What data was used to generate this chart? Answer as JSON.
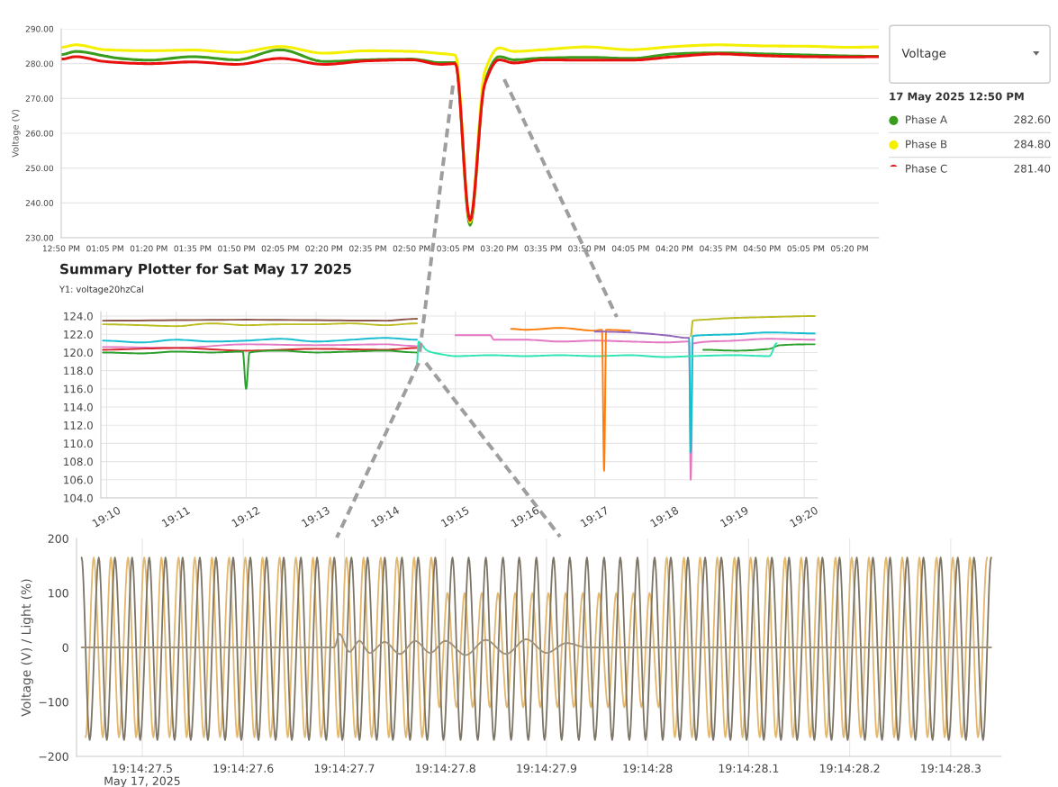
{
  "chart_data": [
    {
      "type": "line",
      "ylabel": "Voltage (V)",
      "xlim": [
        12.8333,
        17.5
      ],
      "ylim": [
        230,
        290
      ],
      "xticks": [
        {
          "value": 12.8333,
          "label": "12:50 PM"
        },
        {
          "value": 13.0833,
          "label": "01:05 PM"
        },
        {
          "value": 13.3333,
          "label": "01:20 PM"
        },
        {
          "value": 13.5833,
          "label": "01:35 PM"
        },
        {
          "value": 13.8333,
          "label": "01:50 PM"
        },
        {
          "value": 14.0833,
          "label": "02:05 PM"
        },
        {
          "value": 14.3333,
          "label": "02:20 PM"
        },
        {
          "value": 14.5833,
          "label": "02:35 PM"
        },
        {
          "value": 14.8333,
          "label": "02:50 PM"
        },
        {
          "value": 15.0833,
          "label": "03:05 PM"
        },
        {
          "value": 15.3333,
          "label": "03:20 PM"
        },
        {
          "value": 15.5833,
          "label": "03:35 PM"
        },
        {
          "value": 15.8333,
          "label": "03:50 PM"
        },
        {
          "value": 16.0833,
          "label": "04:05 PM"
        },
        {
          "value": 16.3333,
          "label": "04:20 PM"
        },
        {
          "value": 16.5833,
          "label": "04:35 PM"
        },
        {
          "value": 16.8333,
          "label": "04:50 PM"
        },
        {
          "value": 17.0833,
          "label": "05:05 PM"
        },
        {
          "value": 17.3333,
          "label": "05:20 PM"
        }
      ],
      "yticks": [
        {
          "value": 230,
          "label": "230.00"
        },
        {
          "value": 240,
          "label": "240.00"
        },
        {
          "value": 250,
          "label": "250.00"
        },
        {
          "value": 260,
          "label": "260.00"
        },
        {
          "value": 270,
          "label": "270.00"
        },
        {
          "value": 280,
          "label": "280.00"
        },
        {
          "value": 290,
          "label": "290.00"
        }
      ],
      "grid": "y",
      "legend": "right",
      "annotations": [
        "Voltage",
        "17 May 2025 12:50 PM",
        "282.60",
        "284.80",
        "281.40"
      ],
      "series": [
        {
          "name": "Phase A",
          "color": "#3a9c1c",
          "x": [
            12.8333,
            12.9167,
            13.0833,
            13.1667,
            13.3333,
            13.5833,
            13.8333,
            14.0833,
            14.3333,
            14.5833,
            14.8333,
            15.0,
            15.0833,
            15.1667,
            15.25,
            15.3333,
            15.4167,
            15.5833,
            15.8333,
            16.0833,
            16.3333,
            16.5833,
            16.8333,
            17.0833,
            17.3333,
            17.5
          ],
          "values": [
            282.6,
            283.5,
            282.2,
            281.5,
            281.0,
            282.0,
            281.1,
            284.0,
            280.6,
            281.1,
            281.3,
            280.3,
            280.3,
            233.6,
            274.6,
            282.0,
            281.1,
            281.6,
            281.8,
            281.5,
            282.8,
            283.1,
            282.8,
            282.5,
            282.2,
            282.1
          ]
        },
        {
          "name": "Phase B",
          "color": "#f5ef00",
          "x": [
            12.8333,
            12.9167,
            13.0833,
            13.3333,
            13.5833,
            13.8333,
            14.0833,
            14.3333,
            14.5833,
            14.8333,
            15.0,
            15.0833,
            15.1667,
            15.25,
            15.3333,
            15.4167,
            15.5833,
            15.8333,
            16.0833,
            16.3333,
            16.5833,
            16.8333,
            17.0833,
            17.3333,
            17.5
          ],
          "values": [
            284.7,
            285.4,
            284.0,
            283.7,
            283.9,
            283.2,
            284.9,
            283.0,
            283.7,
            283.5,
            282.9,
            282.4,
            234.5,
            277.5,
            284.5,
            283.5,
            284.0,
            284.8,
            284.0,
            284.9,
            285.4,
            285.1,
            285.0,
            284.7,
            284.8
          ]
        },
        {
          "name": "Phase C",
          "color": "#e8110f",
          "x": [
            12.8333,
            12.9167,
            13.0833,
            13.3333,
            13.5833,
            13.8333,
            14.0833,
            14.3333,
            14.5833,
            14.8333,
            15.0,
            15.0833,
            15.1667,
            15.25,
            15.3333,
            15.4167,
            15.5833,
            15.8333,
            16.0833,
            16.3333,
            16.5833,
            16.8333,
            17.0833,
            17.3333,
            17.5
          ],
          "values": [
            281.3,
            282.0,
            280.6,
            280.0,
            280.5,
            279.8,
            281.5,
            279.8,
            280.8,
            281.1,
            279.8,
            280.0,
            235.0,
            274.0,
            281.1,
            280.2,
            281.1,
            281.0,
            281.0,
            282.0,
            282.8,
            282.3,
            282.0,
            281.9,
            282.0
          ]
        }
      ]
    },
    {
      "type": "line",
      "title": "Summary Plotter for Sat May 17 2025",
      "subtitle": "Y1: voltage20hzCal",
      "xlim": [
        19.1653,
        19.3365
      ],
      "ylim": [
        104,
        124.5
      ],
      "xticks": [
        {
          "value": 19.1667,
          "label": "19:10"
        },
        {
          "value": 19.1833,
          "label": "19:11"
        },
        {
          "value": 19.2,
          "label": "19:12"
        },
        {
          "value": 19.2167,
          "label": "19:13"
        },
        {
          "value": 19.2333,
          "label": "19:14"
        },
        {
          "value": 19.25,
          "label": "19:15"
        },
        {
          "value": 19.2667,
          "label": "19:16"
        },
        {
          "value": 19.2833,
          "label": "19:17"
        },
        {
          "value": 19.3,
          "label": "19:18"
        },
        {
          "value": 19.3167,
          "label": "19:19"
        },
        {
          "value": 19.3333,
          "label": "19:20"
        }
      ],
      "yticks": [
        {
          "value": 104,
          "label": "104.0"
        },
        {
          "value": 106,
          "label": "106.0"
        },
        {
          "value": 108,
          "label": "108.0"
        },
        {
          "value": 110,
          "label": "110.0"
        },
        {
          "value": 112,
          "label": "112.0"
        },
        {
          "value": 114,
          "label": "114.0"
        },
        {
          "value": 116,
          "label": "116.0"
        },
        {
          "value": 118,
          "label": "118.0"
        },
        {
          "value": 120,
          "label": "120.0"
        },
        {
          "value": 122,
          "label": "122.0"
        },
        {
          "value": 124,
          "label": "124.0"
        }
      ],
      "grid": true,
      "series": [
        {
          "color": "#8c564b",
          "x": [
            19.1658,
            19.2,
            19.2333,
            19.2408
          ],
          "values": [
            123.5,
            123.6,
            123.5,
            123.7
          ]
        },
        {
          "color": "#bcbd22",
          "x": [
            19.1658,
            19.175,
            19.1833,
            19.1917,
            19.2,
            19.2083,
            19.2167,
            19.225,
            19.2333,
            19.2408,
            19.2412,
            19.3062,
            19.3067,
            19.3092,
            19.3167,
            19.325,
            19.3358
          ],
          "values": [
            123.1,
            123.0,
            122.9,
            123.2,
            123.0,
            123.1,
            123.1,
            123.2,
            123.0,
            123.2,
            null,
            121.8,
            123.5,
            123.6,
            123.8,
            123.9,
            124.0
          ]
        },
        {
          "color": "#e377c2",
          "x": [
            19.1658,
            19.1833,
            19.2,
            19.2167,
            19.2333,
            19.2408,
            19.2412,
            19.25,
            19.2583,
            19.2592,
            19.2667,
            19.275,
            19.2833,
            19.2917,
            19.3,
            19.3058,
            19.3062,
            19.3067,
            19.3167,
            19.325,
            19.3358
          ],
          "values": [
            120.6,
            120.5,
            120.9,
            120.8,
            120.9,
            120.7,
            null,
            121.9,
            121.9,
            121.4,
            121.4,
            121.2,
            121.3,
            121.2,
            121.1,
            121.2,
            106.0,
            121.0,
            121.3,
            121.5,
            121.4
          ]
        },
        {
          "color": "#17becf",
          "x": [
            19.1658,
            19.175,
            19.1833,
            19.1917,
            19.2,
            19.2083,
            19.2167,
            19.225,
            19.2333,
            19.2408,
            19.2412,
            19.3058,
            19.3062,
            19.3067,
            19.3092,
            19.3167,
            19.325,
            19.3358
          ],
          "values": [
            121.3,
            121.1,
            121.4,
            121.2,
            121.3,
            121.5,
            121.2,
            121.4,
            121.6,
            121.4,
            null,
            121.5,
            109.0,
            121.8,
            121.9,
            122.0,
            122.2,
            122.1
          ]
        },
        {
          "color": "#d62728",
          "x": [
            19.1658,
            19.1833,
            19.2,
            19.2167,
            19.2333,
            19.2408
          ],
          "values": [
            120.3,
            120.5,
            120.2,
            120.4,
            120.3,
            120.5
          ]
        },
        {
          "color": "#2ca02c",
          "x": [
            19.1658,
            19.175,
            19.1833,
            19.1917,
            19.1992,
            19.2,
            19.2008,
            19.2083,
            19.2167,
            19.225,
            19.2333,
            19.2408,
            19.2412,
            19.3092,
            19.3167,
            19.325,
            19.3267,
            19.3275,
            19.3358
          ],
          "values": [
            120.0,
            119.9,
            120.1,
            120.0,
            120.1,
            116.0,
            120.0,
            120.2,
            120.0,
            120.1,
            120.2,
            120.0,
            null,
            120.3,
            120.2,
            120.4,
            120.7,
            120.8,
            120.9
          ]
        },
        {
          "color": "#2de3b2",
          "x": [
            19.2408,
            19.2412,
            19.2417,
            19.2433,
            19.2467,
            19.25,
            19.2583,
            19.2667,
            19.275,
            19.2833,
            19.2917,
            19.3,
            19.3067,
            19.3167,
            19.325,
            19.3267
          ],
          "values": [
            118.8,
            121.2,
            121.0,
            120.2,
            119.8,
            119.6,
            119.7,
            119.6,
            119.7,
            119.6,
            119.7,
            119.5,
            119.6,
            119.7,
            119.6,
            121.0
          ]
        },
        {
          "color": "#ff7f0e",
          "x": [
            19.2633,
            19.2667,
            19.275,
            19.2833,
            19.285,
            19.2855,
            19.286,
            19.2917
          ],
          "values": [
            122.6,
            122.5,
            122.7,
            122.4,
            122.5,
            107.0,
            122.5,
            122.4
          ]
        },
        {
          "color": "#9467bd",
          "x": [
            19.2833,
            19.2917,
            19.3,
            19.3058
          ],
          "values": [
            122.3,
            122.2,
            121.9,
            121.6
          ]
        }
      ]
    },
    {
      "type": "line",
      "ylabel": "Voltage (V) / Light (%)",
      "xlim": [
        "2025-05-17T19:14:27.435",
        "2025-05-17T19:14:28.350"
      ],
      "ylim": [
        -200,
        200
      ],
      "xticks": [
        {
          "value": "2025-05-17T19:14:27.500",
          "label": "19:14:27.5\nMay 17, 2025"
        },
        {
          "value": "2025-05-17T19:14:27.600",
          "label": "19:14:27.6"
        },
        {
          "value": "2025-05-17T19:14:27.700",
          "label": "19:14:27.7"
        },
        {
          "value": "2025-05-17T19:14:27.800",
          "label": "19:14:27.8"
        },
        {
          "value": "2025-05-17T19:14:27.900",
          "label": "19:14:27.9"
        },
        {
          "value": "2025-05-17T19:14:28.000",
          "label": "19:14:28"
        },
        {
          "value": "2025-05-17T19:14:28.100",
          "label": "19:14:28.1"
        },
        {
          "value": "2025-05-17T19:14:28.200",
          "label": "19:14:28.2"
        },
        {
          "value": "2025-05-17T19:14:28.300",
          "label": "19:14:28.3"
        }
      ],
      "yticks": [
        {
          "value": -200,
          "label": "−200"
        },
        {
          "value": -100,
          "label": "−100"
        },
        0,
        100,
        200
      ],
      "grid": "x",
      "series": [
        {
          "color": "#e3b76e",
          "x": [
            "2025-05-17T19:14:27.444",
            "2025-05-17T19:14:27.452",
            "2025-05-17T19:14:27.461",
            "2025-05-17T19:14:27.469",
            "2025-05-17T19:14:27.477",
            "2025-05-17T19:14:27.486",
            "2025-05-17T19:14:27.494",
            "2025-05-17T19:14:27.502",
            "2025-05-17T19:14:27.511",
            "2025-05-17T19:14:27.519",
            "2025-05-17T19:14:27.527",
            "2025-05-17T19:14:27.536",
            "2025-05-17T19:14:27.544",
            "2025-05-17T19:14:27.552",
            "2025-05-17T19:14:27.561",
            "2025-05-17T19:14:27.569",
            "2025-05-17T19:14:27.577",
            "2025-05-17T19:14:27.586",
            "2025-05-17T19:14:27.594",
            "2025-05-17T19:14:27.602",
            "2025-05-17T19:14:27.611",
            "2025-05-17T19:14:27.619",
            "2025-05-17T19:14:27.627",
            "2025-05-17T19:14:27.636",
            "2025-05-17T19:14:27.644",
            "2025-05-17T19:14:27.652",
            "2025-05-17T19:14:27.661",
            "2025-05-17T19:14:27.669",
            "2025-05-17T19:14:27.677",
            "2025-05-17T19:14:27.686",
            "2025-05-17T19:14:27.694",
            "2025-05-17T19:14:27.702",
            "2025-05-17T19:14:27.711",
            "2025-05-17T19:14:27.719",
            "2025-05-17T19:14:27.727",
            "2025-05-17T19:14:27.736",
            "2025-05-17T19:14:27.744",
            "2025-05-17T19:14:27.752",
            "2025-05-17T19:14:27.761",
            "2025-05-17T19:14:27.769",
            "2025-05-17T19:14:27.777",
            "2025-05-17T19:14:27.786",
            "2025-05-17T19:14:27.794",
            "2025-05-17T19:14:27.802",
            "2025-05-17T19:14:27.811",
            "2025-05-17T19:14:27.819",
            "2025-05-17T19:14:27.827",
            "2025-05-17T19:14:27.836",
            "2025-05-17T19:14:27.844",
            "2025-05-17T19:14:27.852",
            "2025-05-17T19:14:27.861",
            "2025-05-17T19:14:27.869",
            "2025-05-17T19:14:27.877",
            "2025-05-17T19:14:27.886",
            "2025-05-17T19:14:27.894",
            "2025-05-17T19:14:27.902",
            "2025-05-17T19:14:27.911",
            "2025-05-17T19:14:27.919",
            "2025-05-17T19:14:27.927",
            "2025-05-17T19:14:27.936",
            "2025-05-17T19:14:27.944",
            "2025-05-17T19:14:27.952",
            "2025-05-17T19:14:27.961",
            "2025-05-17T19:14:27.969",
            "2025-05-17T19:14:27.977",
            "2025-05-17T19:14:27.986",
            "2025-05-17T19:14:27.994",
            "2025-05-17T19:14:28.002",
            "2025-05-17T19:14:28.011",
            "2025-05-17T19:14:28.019",
            "2025-05-17T19:14:28.027",
            "2025-05-17T19:14:28.036",
            "2025-05-17T19:14:28.044",
            "2025-05-17T19:14:28.052",
            "2025-05-17T19:14:28.061",
            "2025-05-17T19:14:28.069",
            "2025-05-17T19:14:28.077",
            "2025-05-17T19:14:28.086",
            "2025-05-17T19:14:28.094",
            "2025-05-17T19:14:28.102",
            "2025-05-17T19:14:28.111",
            "2025-05-17T19:14:28.119",
            "2025-05-17T19:14:28.127",
            "2025-05-17T19:14:28.136",
            "2025-05-17T19:14:28.144",
            "2025-05-17T19:14:28.152",
            "2025-05-17T19:14:28.161",
            "2025-05-17T19:14:28.169",
            "2025-05-17T19:14:28.177",
            "2025-05-17T19:14:28.186",
            "2025-05-17T19:14:28.194",
            "2025-05-17T19:14:28.202",
            "2025-05-17T19:14:28.211",
            "2025-05-17T19:14:28.219",
            "2025-05-17T19:14:28.227",
            "2025-05-17T19:14:28.236",
            "2025-05-17T19:14:28.244",
            "2025-05-17T19:14:28.252",
            "2025-05-17T19:14:28.261",
            "2025-05-17T19:14:28.269",
            "2025-05-17T19:14:28.277",
            "2025-05-17T19:14:28.286",
            "2025-05-17T19:14:28.294",
            "2025-05-17T19:14:28.302",
            "2025-05-17T19:14:28.311",
            "2025-05-17T19:14:28.319",
            "2025-05-17T19:14:28.327",
            "2025-05-17T19:14:28.336"
          ],
          "values": [
            -165,
            165,
            -165,
            165,
            -165,
            165,
            -165,
            165,
            -165,
            165,
            -165,
            165,
            -165,
            165,
            -165,
            165,
            -165,
            165,
            -165,
            165,
            -165,
            165,
            -165,
            165,
            -165,
            165,
            -165,
            165,
            -165,
            165,
            -165,
            165,
            -165,
            165,
            -165,
            165,
            -165,
            165,
            -165,
            165,
            -165,
            165,
            -110,
            100,
            -110,
            100,
            -110,
            100,
            -110,
            100,
            -110,
            100,
            -110,
            100,
            -110,
            100,
            -110,
            100,
            -110,
            100,
            -110,
            100,
            -110,
            100,
            -110,
            100,
            -110,
            100,
            -110,
            165,
            -165,
            165,
            -165,
            165,
            -165,
            165,
            -165,
            165,
            -165,
            165,
            -165,
            165,
            -165,
            165,
            -165,
            165,
            -165,
            165,
            -165,
            165,
            -165,
            165,
            -165,
            165,
            -165,
            165,
            -165,
            165,
            -165,
            165,
            -165,
            165,
            -165,
            165,
            -165,
            165,
            -165,
            165
          ]
        },
        {
          "color": "#7d7565",
          "x": [
            "2025-05-17T19:14:27.440",
            "2025-05-17T19:14:27.448",
            "2025-05-17T19:14:27.457",
            "2025-05-17T19:14:27.465",
            "2025-05-17T19:14:27.473",
            "2025-05-17T19:14:27.482",
            "2025-05-17T19:14:27.490",
            "2025-05-17T19:14:27.498",
            "2025-05-17T19:14:27.507",
            "2025-05-17T19:14:27.515",
            "2025-05-17T19:14:27.523",
            "2025-05-17T19:14:27.532",
            "2025-05-17T19:14:27.540",
            "2025-05-17T19:14:27.548",
            "2025-05-17T19:14:27.557",
            "2025-05-17T19:14:27.565",
            "2025-05-17T19:14:27.573",
            "2025-05-17T19:14:27.582",
            "2025-05-17T19:14:27.590",
            "2025-05-17T19:14:27.598",
            "2025-05-17T19:14:27.607",
            "2025-05-17T19:14:27.615",
            "2025-05-17T19:14:27.623",
            "2025-05-17T19:14:27.632",
            "2025-05-17T19:14:27.640",
            "2025-05-17T19:14:27.648",
            "2025-05-17T19:14:27.657",
            "2025-05-17T19:14:27.665",
            "2025-05-17T19:14:27.673",
            "2025-05-17T19:14:27.682",
            "2025-05-17T19:14:27.690",
            "2025-05-17T19:14:27.698",
            "2025-05-17T19:14:27.707",
            "2025-05-17T19:14:27.715",
            "2025-05-17T19:14:27.723",
            "2025-05-17T19:14:27.732",
            "2025-05-17T19:14:27.740",
            "2025-05-17T19:14:27.748",
            "2025-05-17T19:14:27.757",
            "2025-05-17T19:14:27.765",
            "2025-05-17T19:14:27.773",
            "2025-05-17T19:14:27.782",
            "2025-05-17T19:14:27.790",
            "2025-05-17T19:14:27.798",
            "2025-05-17T19:14:27.807",
            "2025-05-17T19:14:27.815",
            "2025-05-17T19:14:27.823",
            "2025-05-17T19:14:27.832",
            "2025-05-17T19:14:27.840",
            "2025-05-17T19:14:27.848",
            "2025-05-17T19:14:27.857",
            "2025-05-17T19:14:27.865",
            "2025-05-17T19:14:27.873",
            "2025-05-17T19:14:27.882",
            "2025-05-17T19:14:27.890",
            "2025-05-17T19:14:27.898",
            "2025-05-17T19:14:27.907",
            "2025-05-17T19:14:27.915",
            "2025-05-17T19:14:27.923",
            "2025-05-17T19:14:27.932",
            "2025-05-17T19:14:27.940",
            "2025-05-17T19:14:27.948",
            "2025-05-17T19:14:27.957",
            "2025-05-17T19:14:27.965",
            "2025-05-17T19:14:27.973",
            "2025-05-17T19:14:27.982",
            "2025-05-17T19:14:27.990",
            "2025-05-17T19:14:27.998",
            "2025-05-17T19:14:28.007",
            "2025-05-17T19:14:28.015",
            "2025-05-17T19:14:28.023",
            "2025-05-17T19:14:28.032",
            "2025-05-17T19:14:28.040",
            "2025-05-17T19:14:28.048",
            "2025-05-17T19:14:28.057",
            "2025-05-17T19:14:28.065",
            "2025-05-17T19:14:28.073",
            "2025-05-17T19:14:28.082",
            "2025-05-17T19:14:28.090",
            "2025-05-17T19:14:28.098",
            "2025-05-17T19:14:28.107",
            "2025-05-17T19:14:28.115",
            "2025-05-17T19:14:28.123",
            "2025-05-17T19:14:28.132",
            "2025-05-17T19:14:28.140",
            "2025-05-17T19:14:28.148",
            "2025-05-17T19:14:28.157",
            "2025-05-17T19:14:28.165",
            "2025-05-17T19:14:28.173",
            "2025-05-17T19:14:28.182",
            "2025-05-17T19:14:28.190",
            "2025-05-17T19:14:28.198",
            "2025-05-17T19:14:28.207",
            "2025-05-17T19:14:28.215",
            "2025-05-17T19:14:28.223",
            "2025-05-17T19:14:28.232",
            "2025-05-17T19:14:28.240",
            "2025-05-17T19:14:28.248",
            "2025-05-17T19:14:28.257",
            "2025-05-17T19:14:28.265",
            "2025-05-17T19:14:28.273",
            "2025-05-17T19:14:28.282",
            "2025-05-17T19:14:28.290",
            "2025-05-17T19:14:28.298",
            "2025-05-17T19:14:28.307",
            "2025-05-17T19:14:28.315",
            "2025-05-17T19:14:28.323",
            "2025-05-17T19:14:28.332",
            "2025-05-17T19:14:28.340"
          ],
          "values": [
            165,
            -170,
            165,
            -170,
            165,
            -170,
            165,
            -170,
            165,
            -170,
            165,
            -170,
            165,
            -170,
            165,
            -170,
            165,
            -170,
            165,
            -170,
            165,
            -170,
            165,
            -170,
            165,
            -170,
            165,
            -170,
            165,
            -170,
            165,
            -170,
            165,
            -170,
            165,
            -170,
            165,
            -170,
            165,
            -170,
            165,
            -170,
            165,
            -170,
            165,
            -170,
            165,
            -170,
            165,
            -170,
            165,
            -170,
            165,
            -170,
            165,
            -170,
            165,
            -170,
            165,
            -170,
            165,
            -170,
            165,
            -170,
            165,
            -170,
            165,
            -170,
            165,
            -170,
            165,
            -170,
            165,
            -170,
            165,
            -170,
            165,
            -170,
            165,
            -170,
            165,
            -170,
            165,
            -170,
            165,
            -170,
            165,
            -170,
            165,
            -170,
            165,
            -170,
            165,
            -170,
            165,
            -170,
            165,
            -170,
            165,
            -170,
            165,
            -170,
            165,
            -170,
            165,
            -170,
            165,
            -170,
            165
          ]
        },
        {
          "color": "#9c917c",
          "x": [
            "2025-05-17T19:14:27.440",
            "2025-05-17T19:14:27.690",
            "2025-05-17T19:14:27.695",
            "2025-05-17T19:14:27.705",
            "2025-05-17T19:14:27.715",
            "2025-05-17T19:14:27.725",
            "2025-05-17T19:14:27.740",
            "2025-05-17T19:14:27.755",
            "2025-05-17T19:14:27.770",
            "2025-05-17T19:14:27.785",
            "2025-05-17T19:14:27.800",
            "2025-05-17T19:14:27.820",
            "2025-05-17T19:14:27.840",
            "2025-05-17T19:14:27.860",
            "2025-05-17T19:14:27.880",
            "2025-05-17T19:14:27.900",
            "2025-05-17T19:14:27.920",
            "2025-05-17T19:14:27.940",
            "2025-05-17T19:14:28.340"
          ],
          "values": [
            0,
            0,
            25,
            -8,
            12,
            -10,
            10,
            -12,
            12,
            -10,
            12,
            -14,
            14,
            -12,
            15,
            -10,
            8,
            0,
            0
          ]
        }
      ]
    }
  ]
}
